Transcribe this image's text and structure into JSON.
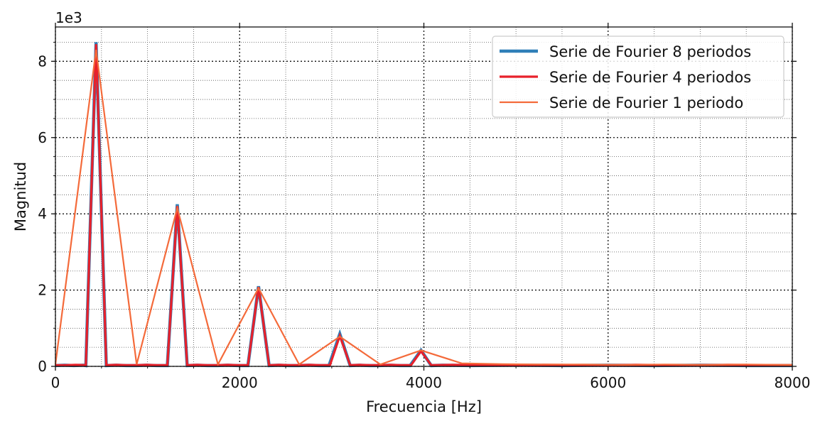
{
  "chart_data": {
    "type": "line",
    "xlabel": "Frecuencia [Hz]",
    "ylabel": "Magnitud",
    "y_scale_label": "1e3",
    "xlim": [
      0,
      8000
    ],
    "ylim": [
      0,
      8.9
    ],
    "xticks": [
      0,
      2000,
      4000,
      6000,
      8000
    ],
    "yticks": [
      0,
      2,
      4,
      6,
      8
    ],
    "grid": "major dotted, minor dotted",
    "legend_position": "top-right",
    "series": [
      {
        "name": "Serie de Fourier 8 periodos",
        "color": "#2f7fb8",
        "x": [
          0,
          100,
          200,
          300,
          330,
          441,
          552,
          660,
          770,
          880,
          990,
          1100,
          1215,
          1323,
          1430,
          1540,
          1650,
          1760,
          1870,
          1980,
          2090,
          2205,
          2320,
          2420,
          2530,
          2640,
          2750,
          2860,
          2970,
          3087,
          3200,
          3300,
          3410,
          3520,
          3630,
          3740,
          3850,
          3969,
          4080,
          4200,
          4500,
          5000,
          5500,
          6000,
          6500,
          7000,
          7500,
          8000
        ],
        "y": [
          0.02,
          0.03,
          0.02,
          0.03,
          0.02,
          8.5,
          0.02,
          0.03,
          0.02,
          0.02,
          0.03,
          0.02,
          0.02,
          4.25,
          0.02,
          0.03,
          0.02,
          0.02,
          0.03,
          0.02,
          0.02,
          2.1,
          0.02,
          0.03,
          0.02,
          0.02,
          0.03,
          0.02,
          0.02,
          0.85,
          0.02,
          0.03,
          0.02,
          0.02,
          0.03,
          0.02,
          0.02,
          0.42,
          0.02,
          0.03,
          0.02,
          0.03,
          0.02,
          0.03,
          0.02,
          0.03,
          0.02,
          0.02
        ]
      },
      {
        "name": "Serie de Fourier 4 periodos",
        "color": "#e8212b",
        "x": [
          0,
          110,
          220,
          330,
          441,
          552,
          660,
          770,
          880,
          990,
          1100,
          1215,
          1323,
          1430,
          1540,
          1650,
          1760,
          1870,
          1980,
          2090,
          2205,
          2320,
          2430,
          2540,
          2650,
          2760,
          2870,
          2980,
          3087,
          3200,
          3310,
          3420,
          3530,
          3640,
          3750,
          3860,
          3969,
          4080,
          4300,
          4800,
          5300,
          5800,
          6300,
          6800,
          7300,
          7800,
          8000
        ],
        "y": [
          0.03,
          0.03,
          0.04,
          0.03,
          8.45,
          0.03,
          0.04,
          0.03,
          0.03,
          0.04,
          0.03,
          0.03,
          4.2,
          0.03,
          0.04,
          0.03,
          0.03,
          0.04,
          0.03,
          0.03,
          2.08,
          0.03,
          0.04,
          0.03,
          0.03,
          0.04,
          0.03,
          0.03,
          0.8,
          0.03,
          0.04,
          0.03,
          0.03,
          0.04,
          0.03,
          0.03,
          0.4,
          0.03,
          0.04,
          0.03,
          0.04,
          0.03,
          0.04,
          0.03,
          0.04,
          0.03,
          0.03
        ]
      },
      {
        "name": "Serie de Fourier 1 periodo",
        "color": "#f46a3a",
        "x": [
          0,
          441,
          882,
          1323,
          1764,
          2205,
          2646,
          3087,
          3528,
          3969,
          4410,
          4851,
          5292,
          5733,
          6174,
          6615,
          7056,
          7497,
          7938,
          8000
        ],
        "y": [
          0.05,
          8.3,
          0.05,
          4.15,
          0.05,
          2.05,
          0.05,
          0.78,
          0.05,
          0.42,
          0.08,
          0.06,
          0.05,
          0.05,
          0.04,
          0.05,
          0.04,
          0.05,
          0.04,
          0.04
        ]
      }
    ]
  }
}
